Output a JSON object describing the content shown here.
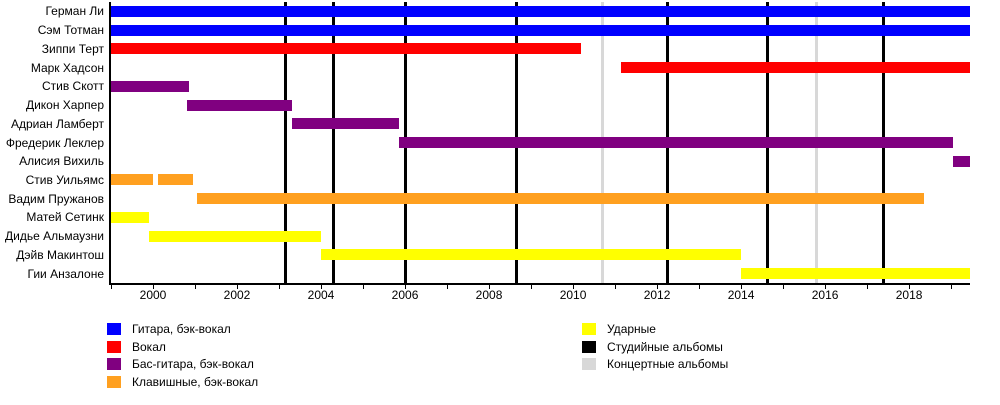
{
  "styles": {
    "guitar": {
      "label": "Гитара, бэк-вокал",
      "color": "#0000FF"
    },
    "vocals": {
      "label": "Вокал",
      "color": "#FF0000"
    },
    "bass": {
      "label": "Бас-гитара, бэк-вокал",
      "color": "#800080"
    },
    "keyboards": {
      "label": "Клавишные, бэк-вокал",
      "color": "#FFA020"
    },
    "drums": {
      "label": "Ударные",
      "color": "#FFFF00"
    },
    "studio_albums": {
      "label": "Студийные альбомы",
      "color": "#000000"
    },
    "live_albums": {
      "label": "Концертные альбомы",
      "color": "#D8D8D8"
    }
  },
  "chart_data": {
    "type": "timeline",
    "x_axis": {
      "min": 1999.0,
      "max": 2019.45,
      "major_ticks": [
        2000,
        2002,
        2004,
        2006,
        2008,
        2010,
        2012,
        2014,
        2016,
        2018
      ],
      "minor_tick_step": 1,
      "grid": false
    },
    "members": [
      {
        "name": "Герман Ли",
        "role": "guitar",
        "segments": [
          [
            1999.0,
            2019.45
          ]
        ]
      },
      {
        "name": "Сэм Тотман",
        "role": "guitar",
        "segments": [
          [
            1999.0,
            2019.45
          ]
        ]
      },
      {
        "name": "Зиппи Терт",
        "role": "vocals",
        "segments": [
          [
            1999.0,
            2010.2
          ]
        ]
      },
      {
        "name": "Марк Хадсон",
        "role": "vocals",
        "segments": [
          [
            2011.15,
            2019.45
          ]
        ]
      },
      {
        "name": "Стив Скотт",
        "role": "bass",
        "segments": [
          [
            1999.0,
            2000.85
          ]
        ]
      },
      {
        "name": "Дикон Харпер",
        "role": "bass",
        "segments": [
          [
            2000.8,
            2003.3
          ]
        ]
      },
      {
        "name": "Адриан Ламберт",
        "role": "bass",
        "segments": [
          [
            2003.3,
            2005.85
          ]
        ]
      },
      {
        "name": "Фредерик Леклер",
        "role": "bass",
        "segments": [
          [
            2005.85,
            2019.05
          ]
        ]
      },
      {
        "name": "Алисия Вихиль",
        "role": "bass",
        "segments": [
          [
            2019.05,
            2019.45
          ]
        ]
      },
      {
        "name": "Стив Уильямс",
        "role": "keyboards",
        "segments": [
          [
            1999.0,
            2000.0
          ],
          [
            2000.12,
            2000.95
          ]
        ]
      },
      {
        "name": "Вадим Пружанов",
        "role": "keyboards",
        "segments": [
          [
            2001.05,
            2018.35
          ]
        ]
      },
      {
        "name": "Матей Сетинк",
        "role": "drums",
        "segments": [
          [
            1999.0,
            1999.9
          ]
        ]
      },
      {
        "name": "Дидье Альмаузни",
        "role": "drums",
        "segments": [
          [
            1999.9,
            2004.0
          ]
        ]
      },
      {
        "name": "Дэйв Макинтош",
        "role": "drums",
        "segments": [
          [
            2004.0,
            2014.0
          ]
        ]
      },
      {
        "name": "Гии Анзалоне",
        "role": "drums",
        "segments": [
          [
            2014.0,
            2019.45
          ]
        ]
      }
    ],
    "album_lines": {
      "studio": [
        2003.15,
        2004.3,
        2006.0,
        2008.65,
        2012.25,
        2014.62,
        2017.4
      ],
      "live": [
        2010.7,
        2015.8
      ]
    }
  },
  "legend": {
    "left_keys": [
      "guitar",
      "vocals",
      "bass",
      "keyboards"
    ],
    "right_keys": [
      "drums",
      "studio_albums",
      "live_albums"
    ]
  }
}
